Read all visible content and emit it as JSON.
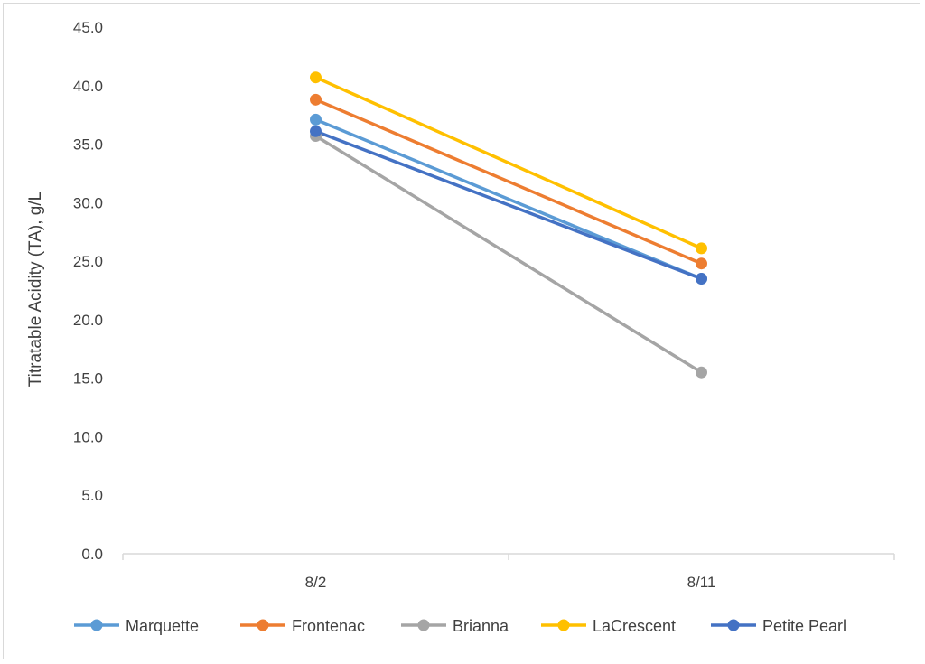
{
  "chart_data": {
    "type": "line",
    "categories": [
      "8/2",
      "8/11"
    ],
    "ylabel": "Titratable Acidity (TA), g/L",
    "xlabel": "",
    "title": "",
    "ylim": [
      0,
      45
    ],
    "ytick_step": 5,
    "ytick_labels": [
      "0.0",
      "5.0",
      "10.0",
      "15.0",
      "20.0",
      "25.0",
      "30.0",
      "35.0",
      "40.0",
      "45.0"
    ],
    "grid": false,
    "legend_position": "bottom",
    "series": [
      {
        "name": "Marquette",
        "color": "#5B9BD5",
        "values": [
          37.1,
          23.5
        ]
      },
      {
        "name": "Frontenac",
        "color": "#ED7D31",
        "values": [
          38.8,
          24.8
        ]
      },
      {
        "name": "Brianna",
        "color": "#A5A5A5",
        "values": [
          35.7,
          15.5
        ]
      },
      {
        "name": "LaCrescent",
        "color": "#FFC000",
        "values": [
          40.7,
          26.1
        ]
      },
      {
        "name": "Petite Pearl",
        "color": "#4472C4",
        "values": [
          36.1,
          23.5
        ]
      }
    ]
  }
}
